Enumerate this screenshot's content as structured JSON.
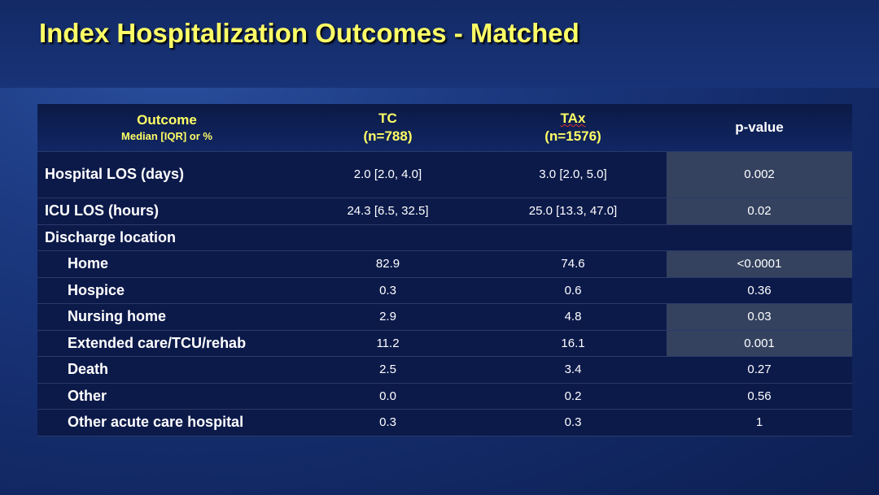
{
  "slide": {
    "title": "Index Hospitalization Outcomes - Matched"
  },
  "table": {
    "headers": {
      "outcome": "Outcome",
      "outcome_sub": "Median [IQR] or %",
      "tc": "TC",
      "tc_n": "(n=788)",
      "tax": "TAx",
      "tax_n": "(n=1576)",
      "pvalue": "p-value"
    },
    "rows": [
      {
        "label": "Hospital LOS (days)",
        "tc": "2.0 [2.0, 4.0]",
        "tax": "3.0 [2.0, 5.0]",
        "p": "0.002"
      },
      {
        "label": "ICU LOS (hours)",
        "tc": "24.3 [6.5, 32.5]",
        "tax": "25.0 [13.3, 47.0]",
        "p": "0.02"
      },
      {
        "label": "Discharge location",
        "tc": "",
        "tax": "",
        "p": ""
      },
      {
        "label": "Home",
        "tc": "82.9",
        "tax": "74.6",
        "p": "<0.0001"
      },
      {
        "label": "Hospice",
        "tc": "0.3",
        "tax": "0.6",
        "p": "0.36"
      },
      {
        "label": "Nursing home",
        "tc": "2.9",
        "tax": "4.8",
        "p": "0.03"
      },
      {
        "label": "Extended care/TCU/rehab",
        "tc": "11.2",
        "tax": "16.1",
        "p": "0.001"
      },
      {
        "label": "Death",
        "tc": "2.5",
        "tax": "3.4",
        "p": "0.27"
      },
      {
        "label": "Other",
        "tc": "0.0",
        "tax": "0.2",
        "p": "0.56"
      },
      {
        "label": "Other acute care hospital",
        "tc": "0.3",
        "tax": "0.3",
        "p": "1"
      }
    ]
  },
  "colors": {
    "title": "#ffff66",
    "header_text": "#ffff66",
    "significant_cell": "#34425f",
    "row_background": "#0c1a4a"
  }
}
